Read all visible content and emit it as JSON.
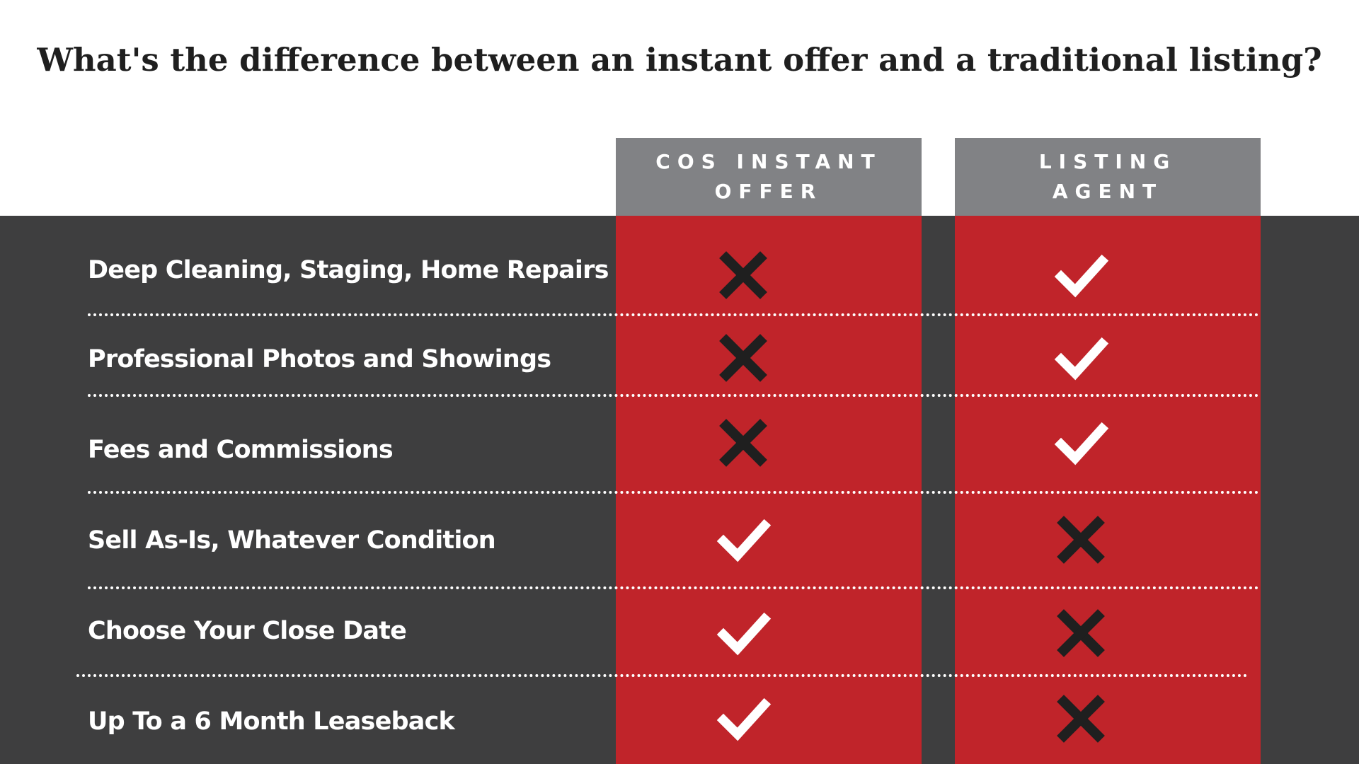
{
  "title": "What's the difference between an instant offer and a traditional listing?",
  "columns": [
    {
      "line1": "COS INSTANT",
      "line2": "OFFER"
    },
    {
      "line1": "LISTING",
      "line2": "AGENT"
    }
  ],
  "rows": [
    {
      "label": "Deep Cleaning, Staging, Home Repairs",
      "col1": "x-icon",
      "col2": "check-icon"
    },
    {
      "label": "Professional Photos and Showings",
      "col1": "x-icon",
      "col2": "check-icon"
    },
    {
      "label": "Fees and Commissions",
      "col1": "x-icon",
      "col2": "check-icon"
    },
    {
      "label": "Sell As-Is, Whatever Condition",
      "col1": "check-icon",
      "col2": "x-icon"
    },
    {
      "label": "Choose Your Close Date",
      "col1": "check-icon",
      "col2": "x-icon"
    },
    {
      "label": "Up To a 6 Month Leaseback",
      "col1": "check-icon",
      "col2": "x-icon"
    }
  ],
  "colors": {
    "band": "#3e3e3f",
    "column": "#c0242a",
    "header": "#818285",
    "check": "#ffffff",
    "x": "#1f1f1f"
  }
}
